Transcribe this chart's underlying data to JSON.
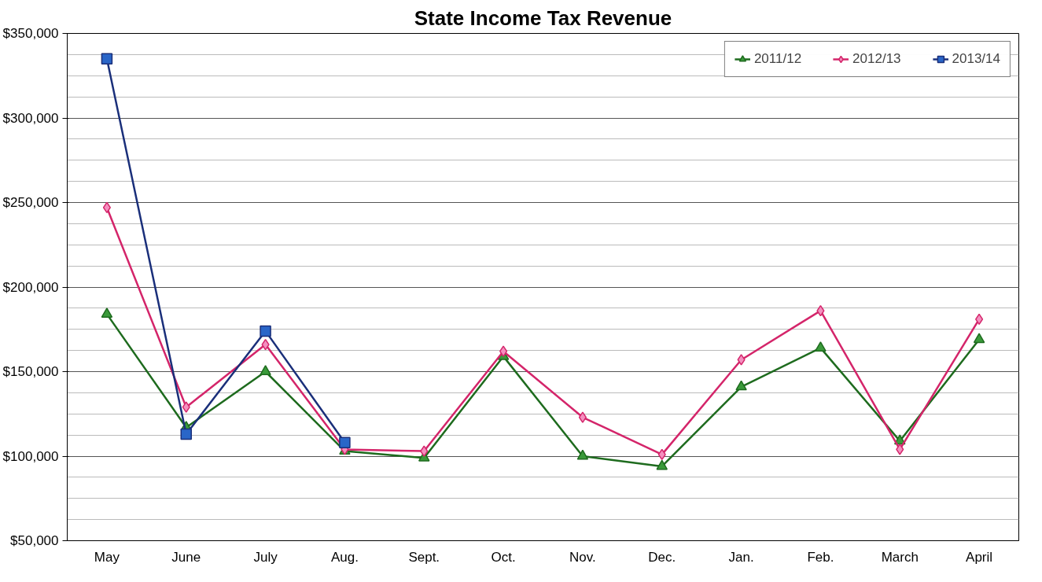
{
  "chart_data": {
    "type": "line",
    "title": "State Income Tax Revenue",
    "categories": [
      "May",
      "June",
      "July",
      "Aug.",
      "Sept.",
      "Oct.",
      "Nov.",
      "Dec.",
      "Jan.",
      "Feb.",
      "March",
      "April"
    ],
    "series": [
      {
        "name": "2011/12",
        "color": "#1e6b1e",
        "marker": "triangle",
        "values": [
          184000,
          117000,
          150000,
          103000,
          99000,
          159000,
          100000,
          94000,
          141000,
          164000,
          109000,
          169000
        ]
      },
      {
        "name": "2012/13",
        "color": "#d4256a",
        "marker": "diamond",
        "values": [
          247000,
          129000,
          166000,
          104000,
          103000,
          162000,
          123000,
          101000,
          157000,
          186000,
          104000,
          181000
        ]
      },
      {
        "name": "2013/14",
        "color": "#1a2f7a",
        "marker": "square",
        "values": [
          335000,
          113000,
          174000,
          108000,
          null,
          null,
          null,
          null,
          null,
          null,
          null,
          null
        ]
      }
    ],
    "ylim": [
      50000,
      350000
    ],
    "yticks": [
      {
        "value": 50000,
        "label": "$50,000"
      },
      {
        "value": 100000,
        "label": "$100,000"
      },
      {
        "value": 150000,
        "label": "$150,000"
      },
      {
        "value": 200000,
        "label": "$200,000"
      },
      {
        "value": 250000,
        "label": "$250,000"
      },
      {
        "value": 300000,
        "label": "$300,000"
      },
      {
        "value": 350000,
        "label": "$350,000"
      }
    ],
    "grid": "y",
    "legend": "top right",
    "line_style": "solid"
  }
}
